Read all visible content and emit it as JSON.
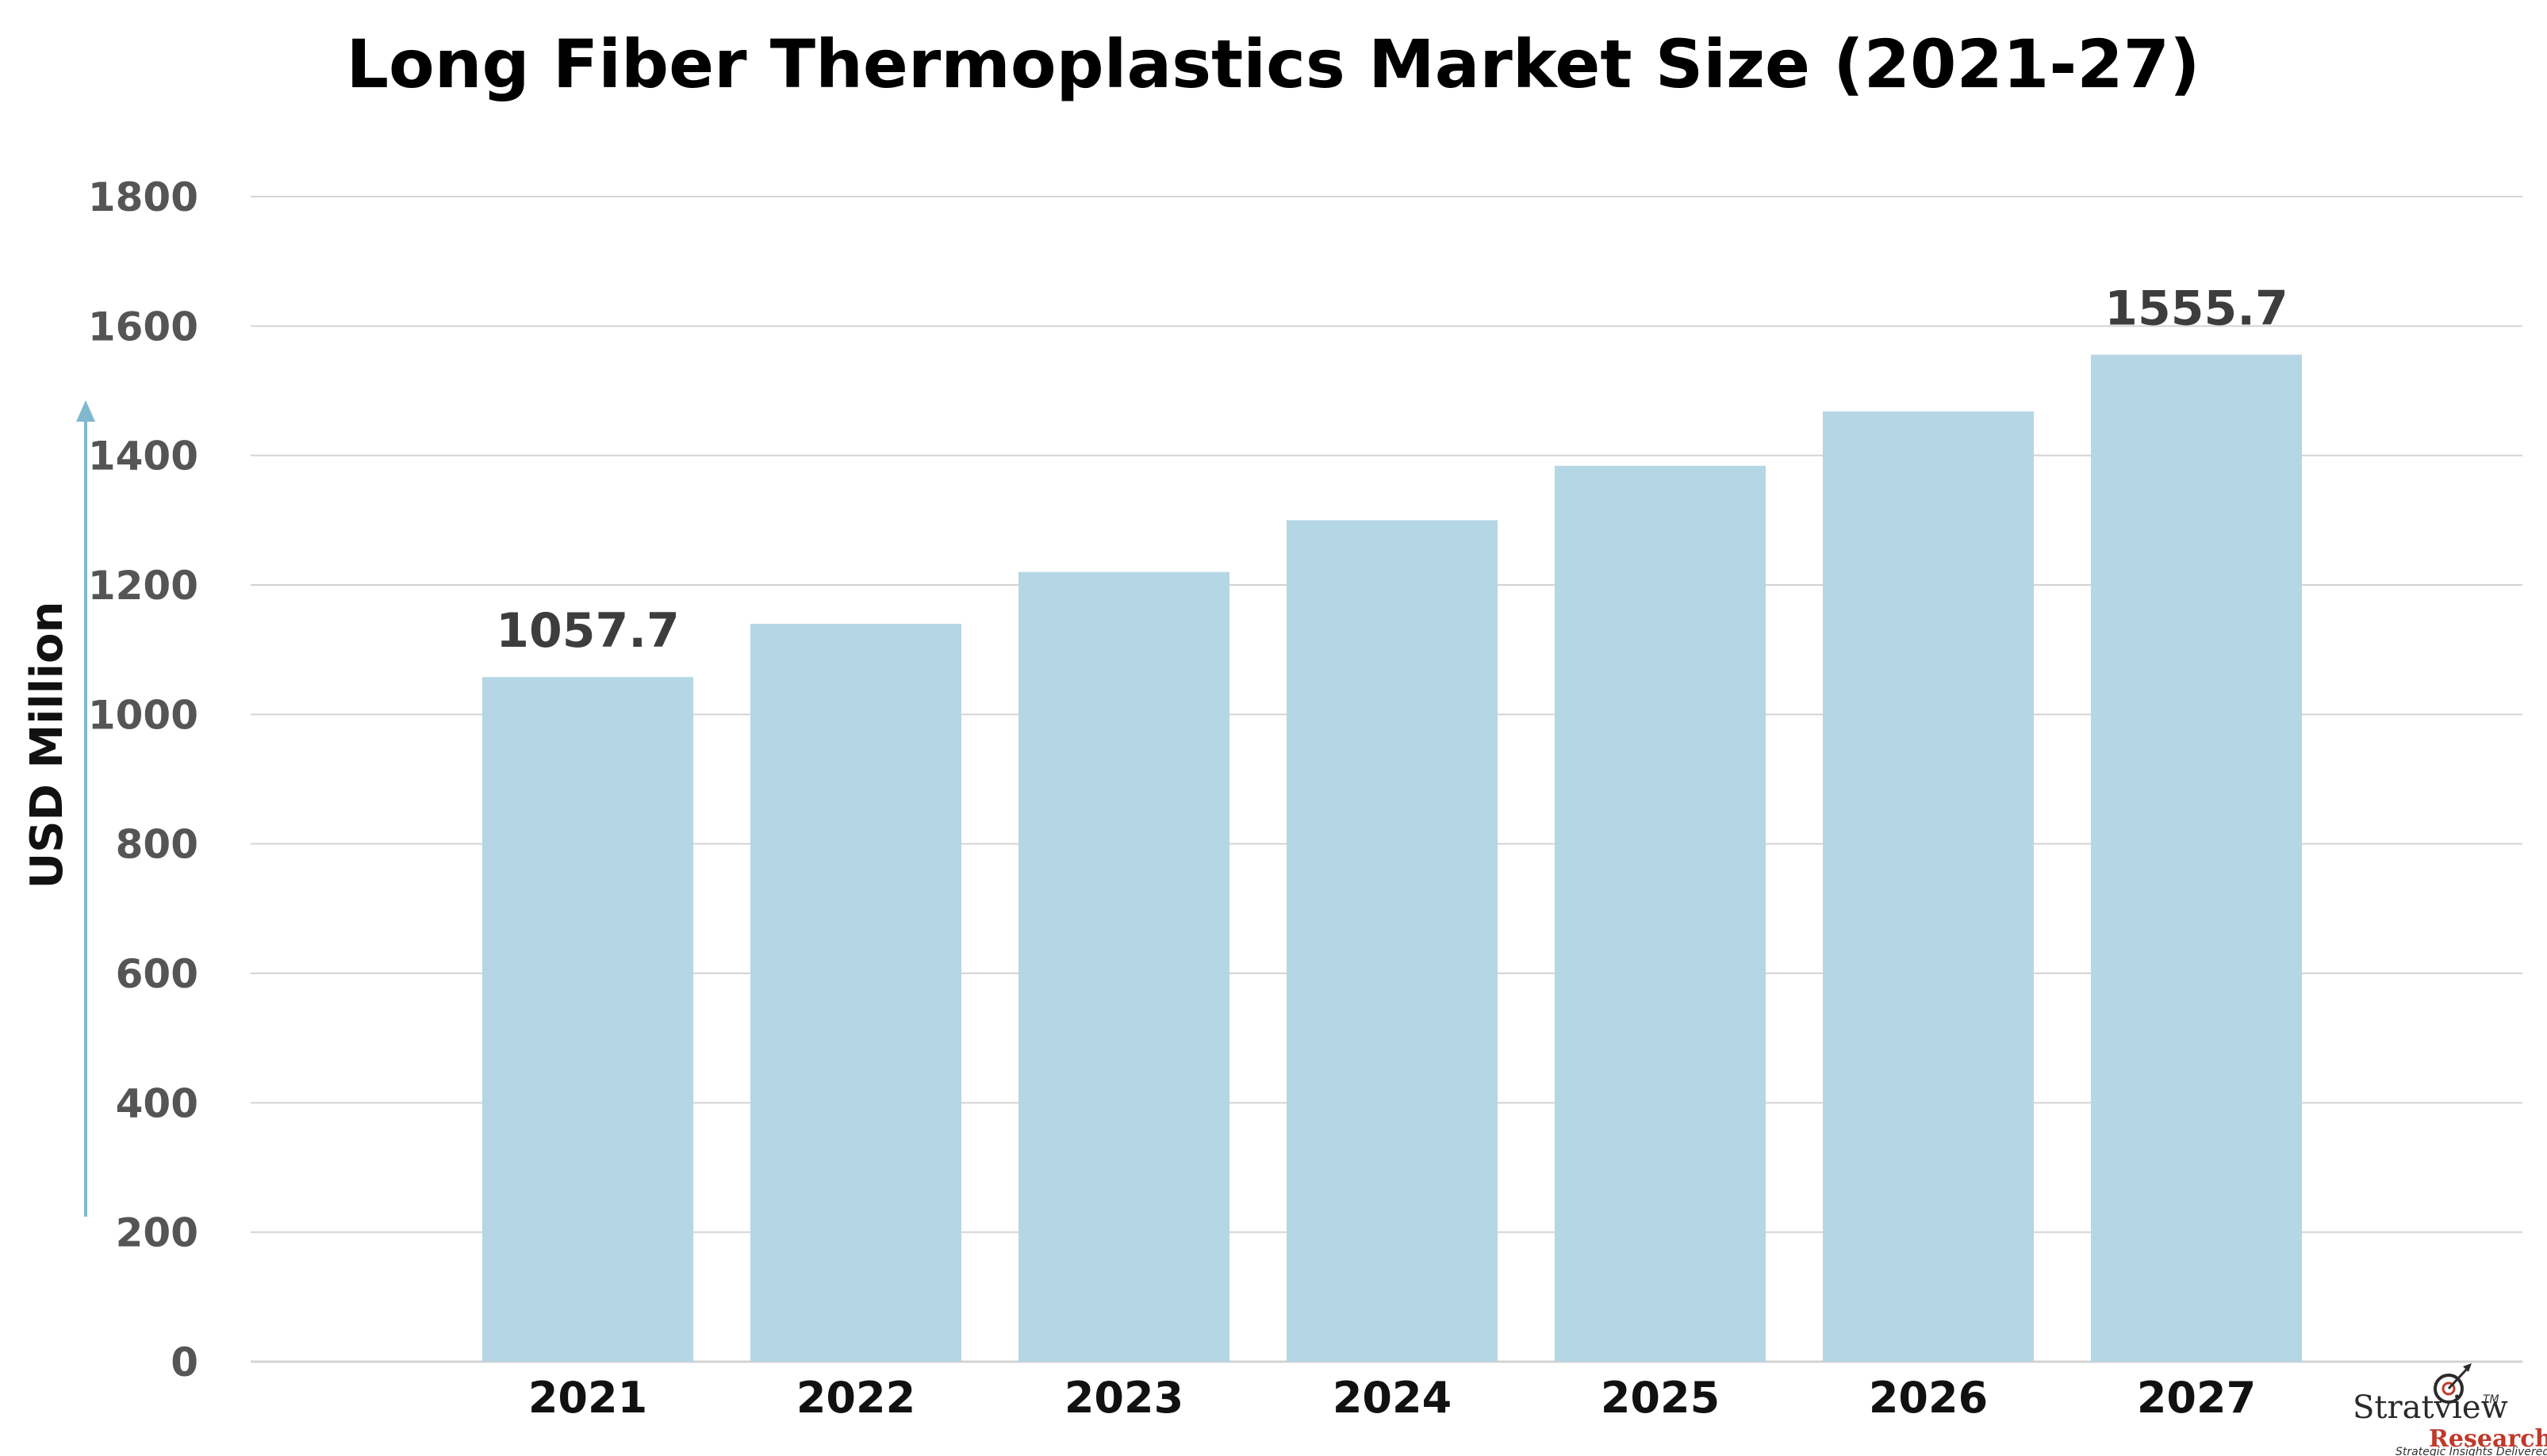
{
  "chart_data": {
    "type": "bar",
    "title": "Long Fiber Thermoplastics Market Size (2021-27)",
    "xlabel": "",
    "ylabel": "USD Million",
    "categories": [
      "2021",
      "2022",
      "2023",
      "2024",
      "2025",
      "2026",
      "2027"
    ],
    "values": [
      1057.7,
      1140,
      1220,
      1300,
      1384,
      1468,
      1555.7
    ],
    "data_labels": [
      "1057.7",
      "",
      "",
      "",
      "",
      "",
      "1555.7"
    ],
    "ylim": [
      0,
      1800
    ],
    "yticks": [
      "0",
      "200",
      "400",
      "600",
      "800",
      "1000",
      "1200",
      "1400",
      "1600",
      "1800"
    ],
    "grid": true,
    "legend": "none",
    "colors": {
      "bar": "#b5d6e5",
      "grid": "#d3d3d3",
      "arrow": "#7fb8cf"
    }
  },
  "logo": {
    "name": "Stratview",
    "sub": "Research",
    "tm": "TM",
    "tagline": "Strategic Insights Delivered"
  }
}
